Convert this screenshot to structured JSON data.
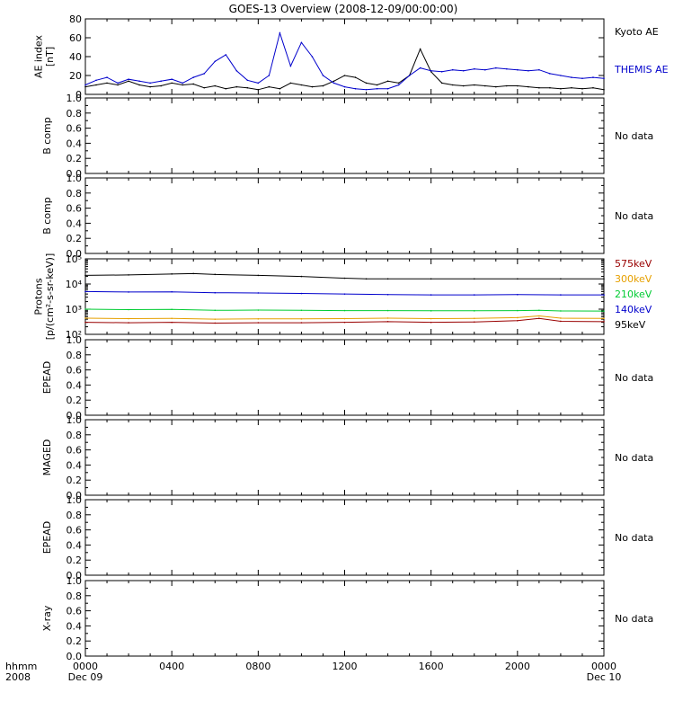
{
  "title": "GOES-13 Overview (2008-12-09/00:00:00)",
  "x_axis": {
    "ticks": [
      "0000",
      "0400",
      "0800",
      "1200",
      "1600",
      "2000",
      "0000"
    ],
    "tick_hours": [
      0,
      4,
      8,
      12,
      16,
      20,
      24
    ],
    "sub_labels": [
      "Dec 09",
      "Dec 10"
    ],
    "left_labels": [
      "hhmm",
      "2008"
    ]
  },
  "colors": {
    "black": "#000000",
    "blue": "#0000cc",
    "green": "#00cc33",
    "orange": "#e6a000",
    "darkred": "#990000"
  },
  "chart_data": [
    {
      "type": "line",
      "ylabel_lines": [
        "AE index",
        "[nT]"
      ],
      "ylim": [
        0,
        80
      ],
      "yticks": [
        "0",
        "20",
        "40",
        "60",
        "80"
      ],
      "series": [
        {
          "name": "Kyoto AE",
          "color": "#000000",
          "x": [
            0,
            0.5,
            1,
            1.5,
            2,
            2.5,
            3,
            3.5,
            4,
            4.5,
            5,
            5.5,
            6,
            6.5,
            7,
            7.5,
            8,
            8.5,
            9,
            9.5,
            10,
            10.5,
            11,
            11.5,
            12,
            12.5,
            13,
            13.5,
            14,
            14.5,
            15,
            15.5,
            16,
            16.5,
            17,
            17.5,
            18,
            18.5,
            19,
            19.5,
            20,
            20.5,
            21,
            21.5,
            22,
            22.5,
            23,
            23.5,
            24
          ],
          "values": [
            8,
            10,
            12,
            10,
            14,
            10,
            8,
            9,
            12,
            10,
            11,
            7,
            9,
            6,
            8,
            7,
            5,
            8,
            6,
            12,
            10,
            8,
            9,
            14,
            20,
            18,
            12,
            10,
            14,
            12,
            20,
            48,
            24,
            12,
            10,
            9,
            10,
            9,
            8,
            9,
            9,
            8,
            7,
            7,
            6,
            7,
            6,
            7,
            5
          ]
        },
        {
          "name": "THEMIS AE",
          "color": "#0000cc",
          "x": [
            0,
            0.5,
            1,
            1.5,
            2,
            2.5,
            3,
            3.5,
            4,
            4.5,
            5,
            5.5,
            6,
            6.5,
            7,
            7.5,
            8,
            8.5,
            9,
            9.5,
            10,
            10.5,
            11,
            11.5,
            12,
            12.5,
            13,
            13.5,
            14,
            14.5,
            15,
            15.5,
            16,
            16.5,
            17,
            17.5,
            18,
            18.5,
            19,
            19.5,
            20,
            20.5,
            21,
            21.5,
            22,
            22.5,
            23,
            23.5,
            24
          ],
          "values": [
            10,
            15,
            18,
            12,
            16,
            14,
            12,
            14,
            16,
            12,
            18,
            22,
            35,
            42,
            25,
            15,
            12,
            20,
            65,
            30,
            55,
            40,
            20,
            12,
            8,
            6,
            5,
            6,
            6,
            10,
            20,
            28,
            25,
            24,
            26,
            25,
            27,
            26,
            28,
            27,
            26,
            25,
            26,
            22,
            20,
            18,
            17,
            18,
            17
          ]
        }
      ]
    },
    {
      "type": "line",
      "ylabel_lines": [
        "B comp"
      ],
      "ylim": [
        0,
        1
      ],
      "yticks": [
        "0.0",
        "0.2",
        "0.4",
        "0.6",
        "0.8",
        "1.0"
      ],
      "minor_yticks": [
        "0.1",
        "0.3",
        "0.5",
        "0.7",
        "0.9"
      ],
      "status_text": "No data",
      "series": []
    },
    {
      "type": "line",
      "ylabel_lines": [
        "B comp"
      ],
      "ylim": [
        0,
        1
      ],
      "yticks": [
        "0.0",
        "0.2",
        "0.4",
        "0.6",
        "0.8",
        "1.0"
      ],
      "minor_yticks": [
        "0.1",
        "0.3",
        "0.5",
        "0.7",
        "0.9"
      ],
      "status_text": "No data",
      "series": []
    },
    {
      "type": "line",
      "log_scale": true,
      "ylabel_lines": [
        "Protons",
        "[p/(cm²-s-sr-keV)]"
      ],
      "ylim": [
        100,
        100000
      ],
      "yticks": [
        "10²",
        "10³",
        "10⁴",
        "10⁵"
      ],
      "series": [
        {
          "name": "575keV",
          "color": "#990000",
          "x": [
            0,
            2,
            4,
            6,
            8,
            10,
            12,
            14,
            16,
            18,
            20,
            21,
            22,
            24
          ],
          "values": [
            300,
            290,
            300,
            280,
            290,
            290,
            300,
            320,
            300,
            310,
            350,
            430,
            330,
            320
          ]
        },
        {
          "name": "300keV",
          "color": "#e6a000",
          "x": [
            0,
            2,
            4,
            6,
            8,
            10,
            12,
            14,
            16,
            18,
            20,
            21,
            22,
            24
          ],
          "values": [
            440,
            420,
            430,
            400,
            410,
            410,
            420,
            440,
            420,
            430,
            460,
            540,
            440,
            430
          ]
        },
        {
          "name": "210keV",
          "color": "#00cc33",
          "x": [
            0,
            2,
            4,
            6,
            8,
            10,
            12,
            14,
            16,
            18,
            20,
            21,
            22,
            24
          ],
          "values": [
            1000,
            960,
            980,
            900,
            920,
            900,
            880,
            880,
            860,
            860,
            880,
            900,
            850,
            840
          ]
        },
        {
          "name": "140keV",
          "color": "#0000cc",
          "x": [
            0,
            2,
            4,
            6,
            8,
            10,
            12,
            14,
            16,
            18,
            20,
            22,
            24
          ],
          "values": [
            5000,
            4800,
            4900,
            4500,
            4400,
            4200,
            4000,
            3800,
            3700,
            3700,
            3800,
            3700,
            3700
          ]
        },
        {
          "name": "95keV",
          "color": "#000000",
          "x": [
            0,
            2,
            4,
            5,
            6,
            8,
            10,
            12,
            13,
            14,
            16,
            18,
            20,
            22,
            24
          ],
          "values": [
            22000,
            23000,
            25000,
            26000,
            24000,
            22000,
            20000,
            17000,
            16000,
            16000,
            16000,
            16000,
            16000,
            16000,
            16000
          ]
        }
      ]
    },
    {
      "type": "line",
      "ylabel_lines": [
        "EPEAD"
      ],
      "ylim": [
        0,
        1
      ],
      "yticks": [
        "0.0",
        "0.2",
        "0.4",
        "0.6",
        "0.8",
        "1.0"
      ],
      "minor_yticks": [
        "0.1",
        "0.3",
        "0.5",
        "0.7",
        "0.9"
      ],
      "status_text": "No data",
      "series": []
    },
    {
      "type": "line",
      "ylabel_lines": [
        "MAGED"
      ],
      "ylim": [
        0,
        1
      ],
      "yticks": [
        "0.0",
        "0.2",
        "0.4",
        "0.6",
        "0.8",
        "1.0"
      ],
      "minor_yticks": [
        "0.1",
        "0.3",
        "0.5",
        "0.7",
        "0.9"
      ],
      "status_text": "No data",
      "series": []
    },
    {
      "type": "line",
      "ylabel_lines": [
        "EPEAD"
      ],
      "ylim": [
        0,
        1
      ],
      "yticks": [
        "0.0",
        "0.2",
        "0.4",
        "0.6",
        "0.8",
        "1.0"
      ],
      "minor_yticks": [
        "0.1",
        "0.3",
        "0.5",
        "0.7",
        "0.9"
      ],
      "status_text": "No data",
      "series": []
    },
    {
      "type": "line",
      "ylabel_lines": [
        "X-ray"
      ],
      "ylim": [
        0,
        1
      ],
      "yticks": [
        "0.0",
        "0.2",
        "0.4",
        "0.6",
        "0.8",
        "1.0"
      ],
      "minor_yticks": [
        "0.1",
        "0.3",
        "0.5",
        "0.7",
        "0.9"
      ],
      "status_text": "No data",
      "series": []
    }
  ]
}
